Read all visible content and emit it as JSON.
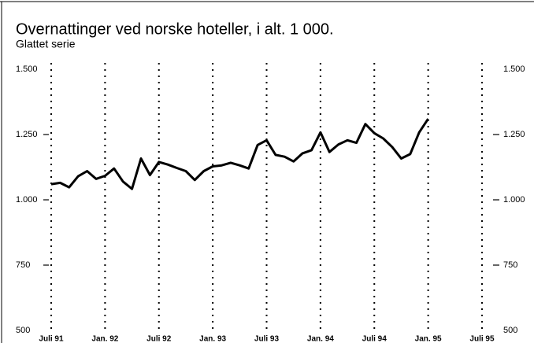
{
  "chart_data": {
    "type": "line",
    "title": "Overnattinger ved norske hoteller, i alt. 1 000.",
    "subtitle": "Glattet serie",
    "categories": [
      "Juli 91",
      null,
      null,
      null,
      null,
      null,
      "Jan. 92",
      null,
      null,
      null,
      null,
      null,
      "Juli 92",
      null,
      null,
      null,
      null,
      null,
      "Jan. 93",
      null,
      null,
      null,
      null,
      null,
      "Juli 93",
      null,
      null,
      null,
      null,
      null,
      "Jan. 94",
      null,
      null,
      null,
      null,
      null,
      "Juli 94",
      null,
      null,
      null,
      null,
      null,
      "Jan. 95",
      null,
      null,
      null,
      null,
      null,
      "Juli 95"
    ],
    "series": [
      {
        "color": "#000000",
        "values": [
          1060,
          1065,
          1048,
          1090,
          1110,
          1080,
          1092,
          1120,
          1070,
          1042,
          1158,
          1095,
          1145,
          1135,
          1122,
          1110,
          1076,
          1110,
          1128,
          1132,
          1142,
          1132,
          1120,
          1210,
          1228,
          1172,
          1165,
          1147,
          1178,
          1190,
          1258,
          1183,
          1212,
          1228,
          1218,
          1290,
          1255,
          1235,
          1202,
          1158,
          1175,
          1258,
          1310,
          null,
          null,
          null,
          null,
          null,
          null
        ]
      }
    ],
    "ylim": [
      500,
      1500
    ],
    "yticks": [
      {
        "value": 500,
        "label": "500"
      },
      {
        "value": 750,
        "label": "750"
      },
      {
        "value": 1000,
        "label": "1.000"
      },
      {
        "value": 1250,
        "label": "1.250"
      },
      {
        "value": 1500,
        "label": "1.500"
      }
    ],
    "grid": true
  }
}
